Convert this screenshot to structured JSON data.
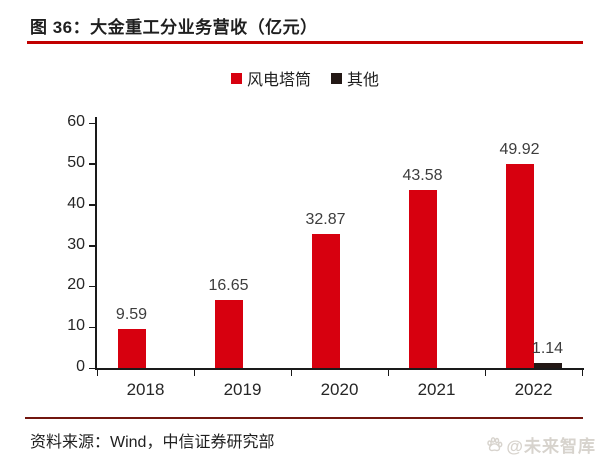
{
  "title": {
    "text": "图 36：大金重工分业务营收（亿元）"
  },
  "legend": [
    {
      "label": "风电塔筒",
      "color": "#d7000f"
    },
    {
      "label": "其他",
      "color": "#231815"
    }
  ],
  "chart_data": {
    "type": "bar",
    "title": "大金重工分业务营收（亿元）",
    "categories": [
      "2018",
      "2019",
      "2020",
      "2021",
      "2022"
    ],
    "series": [
      {
        "name": "风电塔筒",
        "color": "#d7000f",
        "values": [
          9.59,
          16.65,
          32.87,
          43.58,
          49.92
        ]
      },
      {
        "name": "其他",
        "color": "#231815",
        "values": [
          0,
          0,
          0,
          0,
          1.14
        ]
      }
    ],
    "xlabel": "",
    "ylabel": "",
    "ylim": [
      0,
      60
    ],
    "yticks": [
      0,
      10,
      20,
      30,
      40,
      50,
      60
    ],
    "grid": false,
    "legend_position": "top",
    "data_labels": true
  },
  "footer": {
    "source": "资料来源：Wind，中信证券研究部"
  },
  "watermark": {
    "text": "@未来智库",
    "icon": "paw-icon"
  },
  "colors": {
    "bar_red": "#d7000f",
    "bar_dark": "#231815",
    "title_underline": "#c10000",
    "footer_line": "#72160f",
    "axis": "#1a1a1a",
    "label_text": "#3d3d3d",
    "watermark_text": "#d7d3cd"
  }
}
